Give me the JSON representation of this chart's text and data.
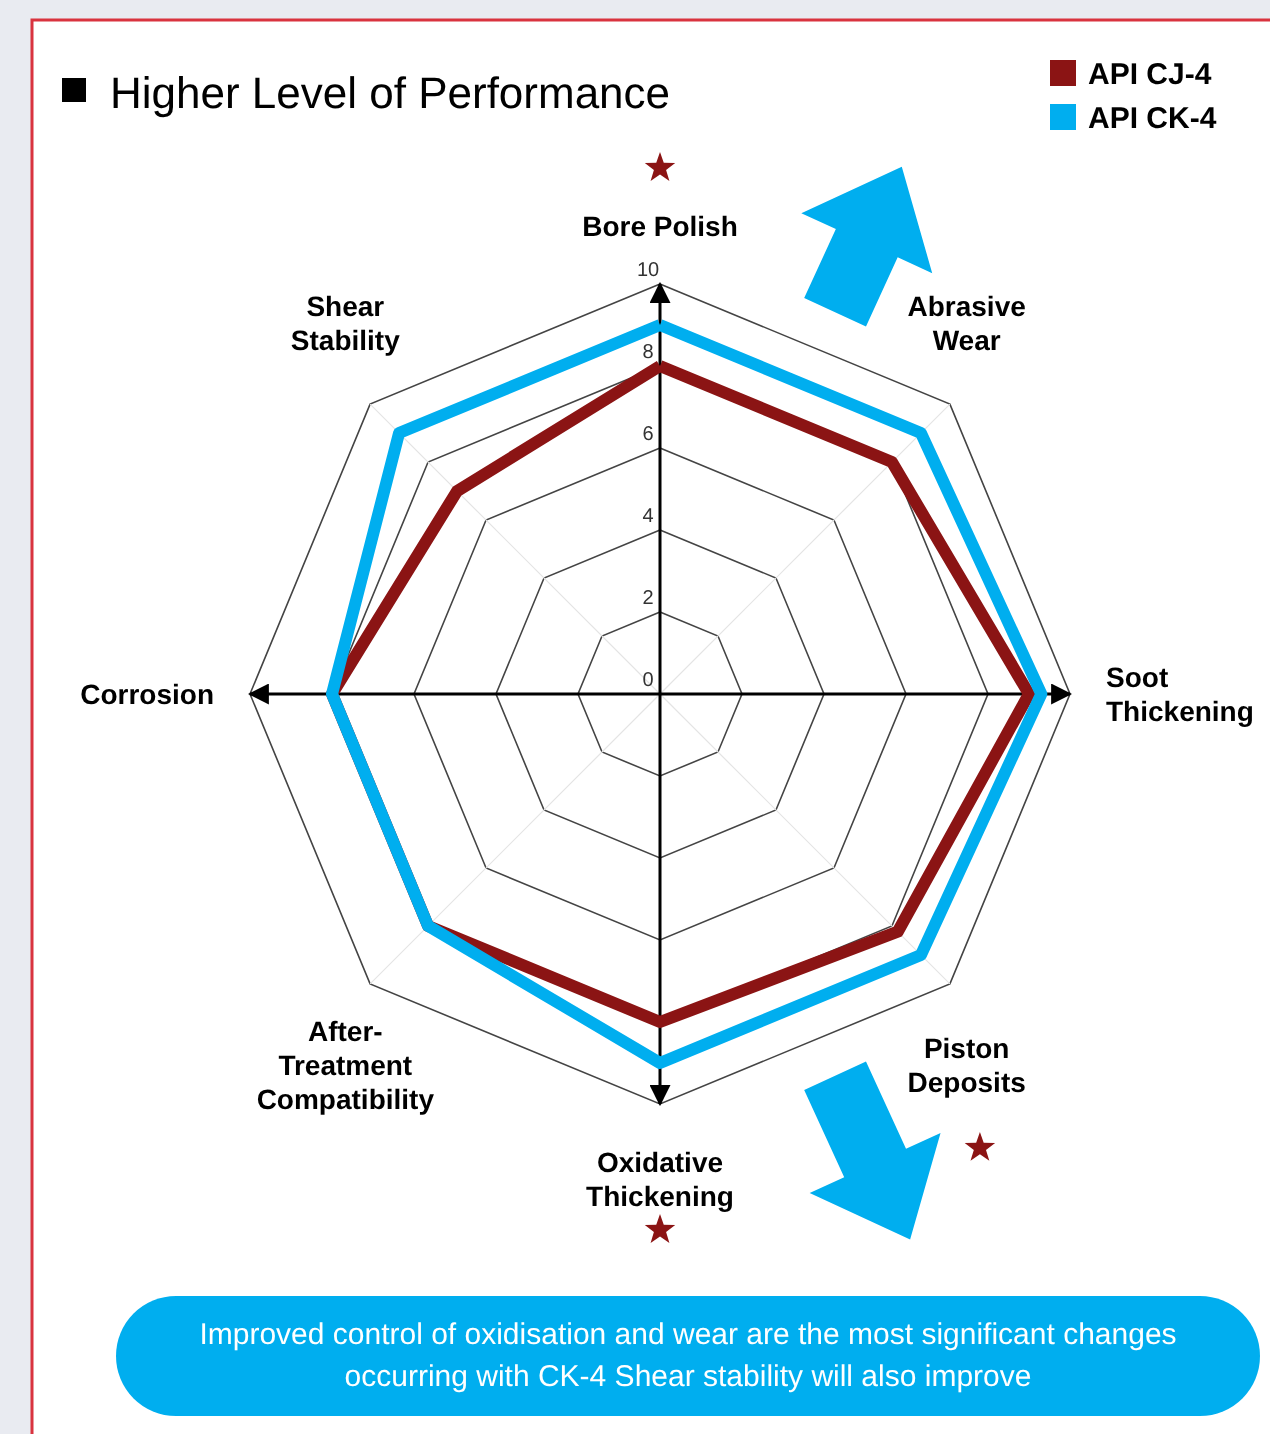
{
  "chart_data": {
    "type": "radar",
    "title": "Higher Level of Performance",
    "categories": [
      "Bore Polish",
      "Abrasive Wear",
      "Soot Thickening",
      "Piston Deposits",
      "Oxidative Thickening",
      "After-Treatment Compatibility",
      "Corrosion",
      "Shear Stability"
    ],
    "series": [
      {
        "name": "API CJ-4",
        "color": "#8b1414",
        "values": [
          8,
          8,
          9,
          8.2,
          8,
          8,
          8,
          7
        ]
      },
      {
        "name": "API CK-4",
        "color": "#00aeef",
        "values": [
          9,
          9,
          9.3,
          9,
          9,
          8,
          8,
          9
        ]
      }
    ],
    "ylim": [
      0,
      10
    ],
    "yticks": [
      0,
      2,
      4,
      6,
      8,
      10
    ],
    "legend": "top right",
    "annotations": [
      "Improved control of oxidisation and wear are the most significant changes occurring with CK-4 Shear stability will also improve"
    ]
  }
}
